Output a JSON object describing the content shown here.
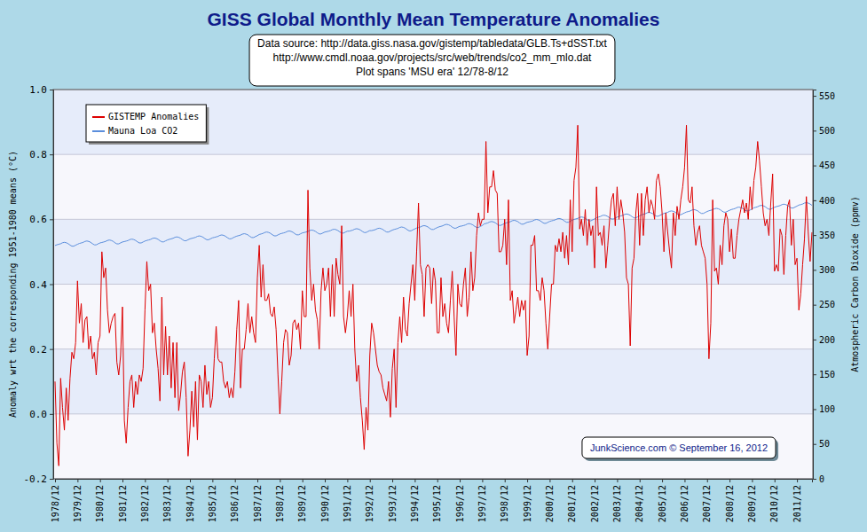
{
  "chart_data": {
    "type": "line",
    "title": "GISS Global Monthly Mean Temperature Anomalies",
    "subtitle": [
      "Data source: http://data.giss.nasa.gov/gistemp/tabledata/GLB.Ts+dSST.txt",
      "http://www.cmdl.noaa.gov/projects/src/web/trends/co2_mm_mlo.dat",
      "Plot spans 'MSU era' 12/78-8/12"
    ],
    "annotations": [
      "JunkScience.com © September 16, 2012"
    ],
    "ylabel": "Anomaly wrt the corresponding 1951-1980 means (°C)",
    "y2label": "Atmospheric Carbon Dioxide (ppmv)",
    "grid": true,
    "legend": "upper left",
    "ylim": [
      -0.2,
      1.0
    ],
    "yticks": [
      -0.2,
      {
        "value": 0,
        "label": "0.0"
      },
      0.2,
      0.4,
      0.6,
      0.8,
      {
        "value": 1,
        "label": "1.0"
      }
    ],
    "y2lim": [
      0,
      559
    ],
    "y2ticks": [
      0,
      50,
      100,
      150,
      200,
      250,
      300,
      350,
      400,
      450,
      500,
      550
    ],
    "categories": [
      "1978/12",
      null,
      null,
      null,
      null,
      null,
      null,
      null,
      null,
      null,
      null,
      null,
      "1979/12",
      null,
      null,
      null,
      null,
      null,
      null,
      null,
      null,
      null,
      null,
      null,
      "1980/12",
      null,
      null,
      null,
      null,
      null,
      null,
      null,
      null,
      null,
      null,
      null,
      "1981/12",
      null,
      null,
      null,
      null,
      null,
      null,
      null,
      null,
      null,
      null,
      null,
      "1982/12",
      null,
      null,
      null,
      null,
      null,
      null,
      null,
      null,
      null,
      null,
      null,
      "1983/12",
      null,
      null,
      null,
      null,
      null,
      null,
      null,
      null,
      null,
      null,
      null,
      "1984/12",
      null,
      null,
      null,
      null,
      null,
      null,
      null,
      null,
      null,
      null,
      null,
      "1985/12",
      null,
      null,
      null,
      null,
      null,
      null,
      null,
      null,
      null,
      null,
      null,
      "1986/12",
      null,
      null,
      null,
      null,
      null,
      null,
      null,
      null,
      null,
      null,
      null,
      "1987/12",
      null,
      null,
      null,
      null,
      null,
      null,
      null,
      null,
      null,
      null,
      null,
      "1988/12",
      null,
      null,
      null,
      null,
      null,
      null,
      null,
      null,
      null,
      null,
      null,
      "1989/12",
      null,
      null,
      null,
      null,
      null,
      null,
      null,
      null,
      null,
      null,
      null,
      "1990/12",
      null,
      null,
      null,
      null,
      null,
      null,
      null,
      null,
      null,
      null,
      null,
      "1991/12",
      null,
      null,
      null,
      null,
      null,
      null,
      null,
      null,
      null,
      null,
      null,
      "1992/12",
      null,
      null,
      null,
      null,
      null,
      null,
      null,
      null,
      null,
      null,
      null,
      "1993/12",
      null,
      null,
      null,
      null,
      null,
      null,
      null,
      null,
      null,
      null,
      null,
      "1994/12",
      null,
      null,
      null,
      null,
      null,
      null,
      null,
      null,
      null,
      null,
      null,
      "1995/12",
      null,
      null,
      null,
      null,
      null,
      null,
      null,
      null,
      null,
      null,
      null,
      "1996/12",
      null,
      null,
      null,
      null,
      null,
      null,
      null,
      null,
      null,
      null,
      null,
      "1997/12",
      null,
      null,
      null,
      null,
      null,
      null,
      null,
      null,
      null,
      null,
      null,
      "1998/12",
      null,
      null,
      null,
      null,
      null,
      null,
      null,
      null,
      null,
      null,
      null,
      "1999/12",
      null,
      null,
      null,
      null,
      null,
      null,
      null,
      null,
      null,
      null,
      null,
      "2000/12",
      null,
      null,
      null,
      null,
      null,
      null,
      null,
      null,
      null,
      null,
      null,
      "2001/12",
      null,
      null,
      null,
      null,
      null,
      null,
      null,
      null,
      null,
      null,
      null,
      "2002/12",
      null,
      null,
      null,
      null,
      null,
      null,
      null,
      null,
      null,
      null,
      null,
      "2003/12",
      null,
      null,
      null,
      null,
      null,
      null,
      null,
      null,
      null,
      null,
      null,
      "2004/12",
      null,
      null,
      null,
      null,
      null,
      null,
      null,
      null,
      null,
      null,
      null,
      "2005/12",
      null,
      null,
      null,
      null,
      null,
      null,
      null,
      null,
      null,
      null,
      null,
      "2006/12",
      null,
      null,
      null,
      null,
      null,
      null,
      null,
      null,
      null,
      null,
      null,
      "2007/12",
      null,
      null,
      null,
      null,
      null,
      null,
      null,
      null,
      null,
      null,
      null,
      "2008/12",
      null,
      null,
      null,
      null,
      null,
      null,
      null,
      null,
      null,
      null,
      null,
      "2009/12",
      null,
      null,
      null,
      null,
      null,
      null,
      null,
      null,
      null,
      null,
      null,
      "2010/12",
      null,
      null,
      null,
      null,
      null,
      null,
      null,
      null,
      null,
      null,
      null,
      "2011/12",
      null,
      null,
      null,
      null,
      null,
      null,
      null,
      null
    ],
    "series": [
      {
        "name": "GISTEMP Anomalies",
        "color": "#dd0000",
        "values": [
          0.1,
          -0.09,
          -0.16,
          0.11,
          0.02,
          -0.05,
          0.08,
          -0.02,
          0.11,
          0.19,
          0.17,
          0.22,
          0.41,
          0.28,
          0.34,
          0.22,
          0.29,
          0.3,
          0.2,
          0.24,
          0.17,
          0.19,
          0.12,
          0.22,
          0.24,
          0.5,
          0.42,
          0.45,
          0.32,
          0.25,
          0.28,
          0.3,
          0.31,
          0.16,
          0.12,
          0.18,
          0.33,
          -0.02,
          -0.09,
          0.02,
          0.1,
          0.12,
          0.02,
          0.1,
          0.06,
          0.12,
          0.1,
          0.14,
          0.32,
          0.47,
          0.38,
          0.4,
          0.25,
          0.28,
          0.2,
          0.14,
          0.04,
          0.36,
          0.12,
          0.27,
          0.12,
          0.24,
          0.08,
          0.22,
          0.05,
          0.22,
          0.01,
          0.06,
          0.13,
          0.16,
          0.05,
          -0.13,
          -0.05,
          0.07,
          -0.04,
          0.1,
          -0.08,
          0.12,
          0.1,
          0.02,
          0.15,
          0.06,
          0.1,
          0.02,
          0.05,
          0.17,
          0.27,
          0.17,
          0.16,
          0.16,
          0.1,
          0.08,
          0.1,
          0.05,
          0.08,
          0.05,
          0.13,
          0.26,
          0.35,
          0.08,
          0.2,
          0.2,
          0.26,
          0.34,
          0.25,
          0.3,
          0.25,
          0.22,
          0.42,
          0.52,
          0.36,
          0.46,
          0.35,
          0.35,
          0.37,
          0.31,
          0.3,
          0.33,
          0.26,
          0.12,
          0.0,
          0.1,
          0.22,
          0.26,
          0.25,
          0.15,
          0.18,
          0.28,
          0.29,
          0.26,
          0.28,
          0.2,
          0.38,
          0.3,
          0.3,
          0.69,
          0.45,
          0.35,
          0.4,
          0.32,
          0.29,
          0.2,
          0.38,
          0.45,
          0.38,
          0.4,
          0.45,
          0.3,
          0.46,
          0.3,
          0.48,
          0.43,
          0.4,
          0.58,
          0.3,
          0.25,
          0.3,
          0.38,
          0.3,
          0.4,
          0.2,
          0.1,
          0.15,
          0.05,
          -0.02,
          -0.11,
          0.02,
          -0.05,
          0.18,
          0.28,
          0.25,
          0.2,
          0.15,
          0.13,
          0.12,
          0.08,
          0.06,
          0.04,
          0.1,
          -0.01,
          0.14,
          0.2,
          0.02,
          0.22,
          0.3,
          0.22,
          0.36,
          0.26,
          0.24,
          0.34,
          0.4,
          0.46,
          0.35,
          0.5,
          0.65,
          0.46,
          0.43,
          0.3,
          0.45,
          0.46,
          0.45,
          0.34,
          0.45,
          0.41,
          0.25,
          0.25,
          0.42,
          0.3,
          0.34,
          0.28,
          0.25,
          0.35,
          0.44,
          0.3,
          0.18,
          0.4,
          0.34,
          0.33,
          0.4,
          0.45,
          0.3,
          0.36,
          0.5,
          0.38,
          0.42,
          0.55,
          0.62,
          0.58,
          0.6,
          0.6,
          0.84,
          0.62,
          0.7,
          0.7,
          0.75,
          0.69,
          0.68,
          0.5,
          0.5,
          0.52,
          0.6,
          0.46,
          0.66,
          0.35,
          0.38,
          0.28,
          0.32,
          0.36,
          0.3,
          0.35,
          0.32,
          0.35,
          0.18,
          0.24,
          0.52,
          0.52,
          0.55,
          0.38,
          0.38,
          0.35,
          0.42,
          0.38,
          0.28,
          0.2,
          0.3,
          0.4,
          0.4,
          0.52,
          0.5,
          0.54,
          0.5,
          0.56,
          0.48,
          0.55,
          0.46,
          0.66,
          0.5,
          0.72,
          0.76,
          0.89,
          0.57,
          0.6,
          0.55,
          0.63,
          0.52,
          0.6,
          0.55,
          0.58,
          0.45,
          0.7,
          0.55,
          0.56,
          0.52,
          0.58,
          0.45,
          0.52,
          0.6,
          0.66,
          0.68,
          0.58,
          0.7,
          0.6,
          0.66,
          0.62,
          0.56,
          0.42,
          0.4,
          0.21,
          0.45,
          0.48,
          0.62,
          0.68,
          0.52,
          0.68,
          0.55,
          0.66,
          0.7,
          0.62,
          0.66,
          0.64,
          0.6,
          0.72,
          0.74,
          0.7,
          0.62,
          0.5,
          0.62,
          0.56,
          0.5,
          0.45,
          0.62,
          0.55,
          0.64,
          0.6,
          0.66,
          0.7,
          0.76,
          0.89,
          0.66,
          0.65,
          0.7,
          0.58,
          0.52,
          0.56,
          0.58,
          0.52,
          0.5,
          0.48,
          0.4,
          0.17,
          0.28,
          0.66,
          0.44,
          0.45,
          0.4,
          0.52,
          0.46,
          0.58,
          0.62,
          0.6,
          0.5,
          0.57,
          0.48,
          0.48,
          0.55,
          0.6,
          0.63,
          0.66,
          0.62,
          0.65,
          0.6,
          0.7,
          0.63,
          0.72,
          0.76,
          0.84,
          0.78,
          0.7,
          0.62,
          0.58,
          0.6,
          0.55,
          0.65,
          0.74,
          0.44,
          0.46,
          0.44,
          0.57,
          0.55,
          0.43,
          0.55,
          0.64,
          0.66,
          0.52,
          0.6,
          0.46,
          0.48,
          0.32,
          0.37,
          0.46,
          0.54,
          0.67,
          0.56,
          0.47,
          0.56
        ]
      },
      {
        "name": "Mauna Loa CO2",
        "color": "#5b8edc",
        "axis": "y2",
        "values": [
          335.0,
          336.1,
          336.8,
          337.6,
          339.0,
          339.6,
          339.0,
          337.7,
          335.7,
          334.1,
          334.1,
          335.5,
          336.8,
          338.0,
          338.7,
          339.5,
          340.9,
          341.5,
          340.9,
          339.6,
          337.6,
          336.0,
          336.0,
          337.4,
          338.7,
          339.4,
          340.1,
          340.9,
          342.3,
          342.9,
          342.3,
          341.0,
          339.0,
          337.4,
          337.4,
          338.8,
          340.1,
          340.7,
          341.4,
          342.2,
          343.6,
          344.2,
          343.6,
          342.3,
          340.3,
          338.7,
          338.7,
          340.1,
          341.4,
          342.3,
          343.0,
          343.8,
          345.2,
          345.8,
          345.2,
          343.9,
          341.9,
          340.3,
          340.3,
          341.7,
          343.0,
          343.9,
          344.6,
          345.4,
          346.8,
          347.4,
          346.8,
          345.5,
          343.5,
          341.9,
          341.9,
          343.3,
          344.6,
          345.3,
          346.0,
          346.8,
          348.2,
          348.8,
          348.2,
          346.9,
          344.9,
          343.3,
          343.3,
          344.7,
          346.0,
          346.7,
          347.4,
          348.2,
          349.6,
          350.2,
          349.6,
          348.3,
          346.3,
          344.7,
          344.7,
          346.1,
          347.4,
          348.5,
          349.2,
          350.0,
          351.4,
          352.0,
          351.4,
          350.1,
          348.1,
          346.5,
          346.5,
          347.9,
          349.2,
          350.9,
          351.6,
          352.4,
          353.8,
          354.4,
          353.8,
          352.5,
          350.5,
          348.9,
          348.9,
          350.3,
          351.6,
          352.4,
          353.1,
          353.9,
          355.3,
          355.9,
          355.3,
          354.0,
          352.0,
          350.4,
          350.4,
          351.8,
          353.1,
          353.7,
          354.4,
          355.2,
          356.6,
          357.2,
          356.6,
          355.3,
          353.3,
          351.7,
          351.7,
          353.1,
          354.4,
          354.9,
          355.6,
          356.4,
          357.8,
          358.4,
          357.8,
          356.5,
          354.5,
          352.9,
          352.9,
          354.3,
          355.6,
          355.7,
          356.4,
          357.2,
          358.6,
          359.2,
          358.6,
          357.3,
          355.3,
          353.7,
          353.7,
          355.1,
          356.4,
          356.4,
          357.1,
          357.9,
          359.3,
          359.9,
          359.3,
          358.0,
          356.0,
          354.4,
          354.4,
          355.8,
          357.1,
          358.1,
          358.8,
          359.6,
          361.0,
          361.6,
          361.0,
          359.7,
          357.7,
          356.1,
          356.1,
          357.5,
          358.8,
          360.1,
          360.8,
          361.6,
          363.0,
          363.6,
          363.0,
          361.7,
          359.7,
          358.1,
          358.1,
          359.5,
          360.8,
          361.9,
          362.6,
          363.4,
          364.8,
          365.4,
          364.8,
          363.5,
          361.5,
          359.9,
          359.9,
          361.3,
          362.6,
          363.0,
          363.7,
          364.5,
          365.9,
          366.5,
          365.9,
          364.6,
          362.6,
          361.0,
          361.0,
          362.4,
          363.7,
          366.0,
          366.7,
          367.5,
          368.9,
          369.5,
          368.9,
          367.6,
          365.6,
          364.0,
          364.0,
          365.4,
          366.7,
          367.7,
          368.4,
          369.2,
          370.6,
          371.2,
          370.6,
          369.3,
          367.3,
          365.7,
          365.7,
          367.1,
          368.4,
          368.9,
          369.6,
          370.4,
          371.8,
          372.4,
          371.8,
          370.5,
          368.5,
          366.9,
          366.9,
          368.3,
          369.6,
          370.4,
          371.1,
          371.9,
          373.3,
          373.9,
          373.3,
          372.0,
          370.0,
          368.4,
          368.4,
          369.8,
          371.1,
          372.5,
          373.2,
          374.0,
          375.4,
          376.0,
          375.4,
          374.1,
          372.1,
          370.5,
          370.5,
          371.9,
          373.2,
          375.1,
          375.8,
          376.6,
          378.0,
          378.6,
          378.0,
          376.7,
          374.7,
          373.1,
          373.1,
          374.5,
          375.8,
          376.8,
          377.5,
          378.3,
          379.7,
          380.3,
          379.7,
          378.4,
          376.4,
          374.8,
          374.8,
          376.2,
          377.5,
          379.1,
          379.8,
          380.6,
          382.0,
          382.6,
          382.0,
          380.7,
          378.7,
          377.1,
          377.1,
          378.5,
          379.8,
          381.2,
          381.9,
          382.7,
          384.1,
          384.7,
          384.1,
          382.8,
          380.8,
          379.2,
          379.2,
          380.6,
          381.9,
          383.1,
          383.8,
          384.6,
          386.0,
          386.6,
          386.0,
          384.7,
          382.7,
          381.1,
          381.1,
          382.5,
          383.8,
          384.9,
          385.6,
          386.4,
          387.8,
          388.4,
          387.8,
          386.5,
          384.5,
          382.9,
          382.9,
          384.3,
          385.6,
          386.7,
          387.4,
          388.2,
          389.6,
          390.2,
          389.6,
          388.3,
          386.3,
          384.7,
          384.7,
          386.1,
          387.4,
          389.2,
          389.9,
          390.7,
          392.1,
          392.7,
          392.1,
          390.8,
          388.8,
          387.2,
          387.2,
          388.6,
          389.9,
          390.9,
          391.6,
          392.4,
          393.8,
          394.4,
          393.8,
          392.5,
          390.5,
          388.9,
          388.9,
          390.3,
          391.6,
          393.1,
          393.8,
          394.6,
          396.0,
          396.6,
          396.0,
          394.7,
          392.7
        ]
      }
    ]
  }
}
